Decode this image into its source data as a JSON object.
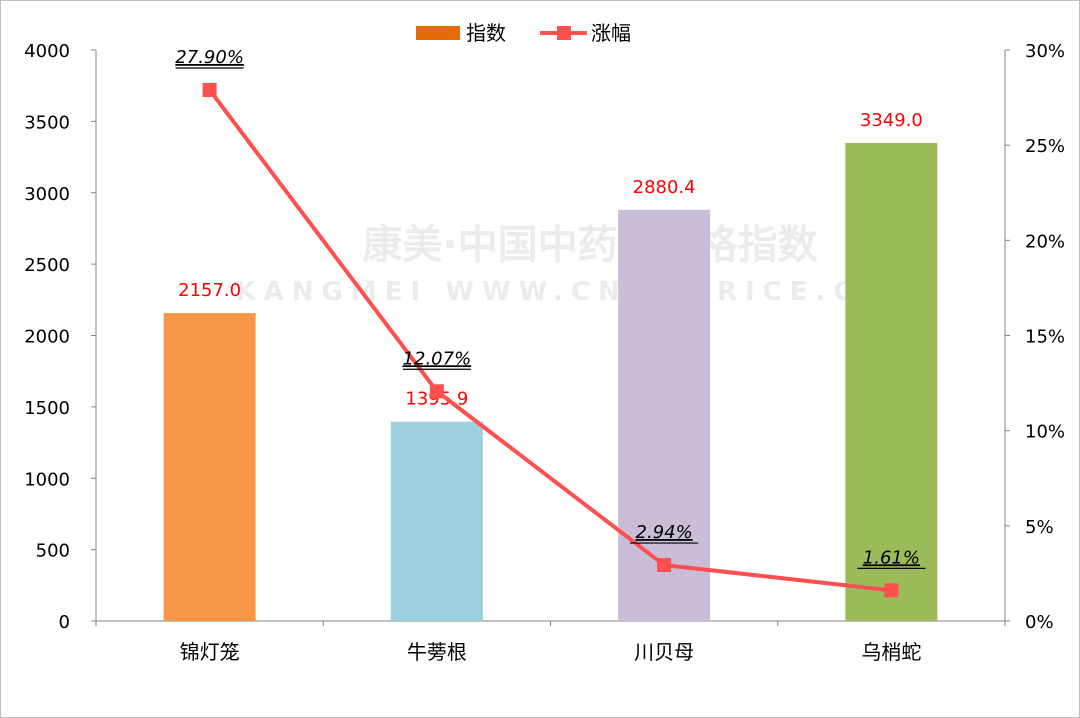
{
  "chart_data": {
    "type": "bar+line",
    "categories": [
      "锦灯笼",
      "牛蒡根",
      "川贝母",
      "乌梢蛇"
    ],
    "series": [
      {
        "name": "指数",
        "type": "bar",
        "axis": "left",
        "values": [
          2157.0,
          1395.9,
          2880.4,
          3349.0
        ],
        "labels": [
          "2157.0",
          "1395.9",
          "2880.4",
          "3349.0"
        ],
        "colors": [
          "#F79646",
          "#9DD0DE",
          "#C9BDD8",
          "#9BBB59"
        ],
        "legend_color": "#E46C0A"
      },
      {
        "name": "涨幅",
        "type": "line",
        "axis": "right",
        "values": [
          27.9,
          12.07,
          2.94,
          1.61
        ],
        "labels": [
          "27.90%",
          "12.07%",
          "2.94%",
          "1.61%"
        ],
        "color": "#FF5050"
      }
    ],
    "y_left": {
      "range": [
        0,
        4000
      ],
      "ticks": [
        "0",
        "500",
        "1000",
        "1500",
        "2000",
        "2500",
        "3000",
        "3500",
        "4000"
      ]
    },
    "y_right": {
      "range": [
        0,
        30
      ],
      "ticks": [
        "0%",
        "5%",
        "10%",
        "15%",
        "20%",
        "25%",
        "30%"
      ]
    },
    "legend": "top-center",
    "grid": false,
    "label_color": "#FF0000"
  },
  "watermark": {
    "line1": "康美·中国中药材价格指数",
    "line2": "KANGMEI WWW.CNKMPRICE.COM"
  }
}
